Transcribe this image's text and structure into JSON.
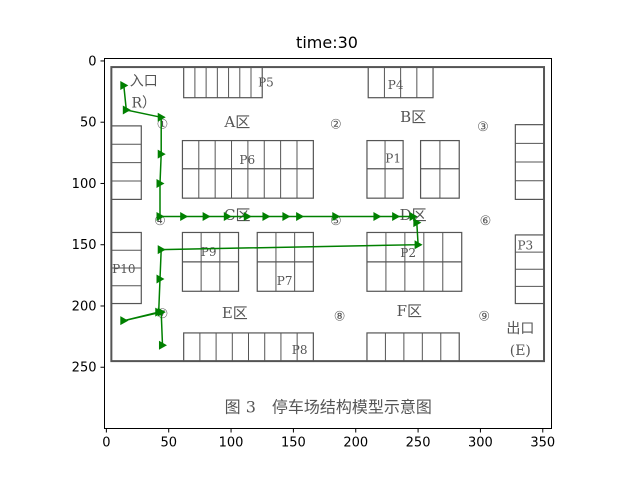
{
  "chart_data": {
    "type": "line",
    "title": "time:30",
    "xlabel": "",
    "ylabel": "",
    "xlim": [
      -1.5,
      357
    ],
    "ylim": [
      300,
      -2
    ],
    "x_ticks": [
      0,
      50,
      100,
      150,
      200,
      250,
      300,
      350
    ],
    "y_ticks": [
      0,
      50,
      100,
      150,
      200,
      250
    ],
    "grid": false,
    "background_image": {
      "caption": "图 3　停车场结构模型示意图",
      "areas": [
        "A区",
        "B区",
        "C区",
        "D区",
        "E区",
        "F区"
      ],
      "entrance": [
        "入口",
        "R）"
      ],
      "exit": [
        "出口",
        "(E)"
      ],
      "nodes": [
        "①",
        "②",
        "③",
        "④",
        "⑤",
        "⑥",
        "⑦",
        "⑧",
        "⑨"
      ],
      "parking_labels": [
        "P5",
        "P4",
        "P6",
        "P1",
        "P3",
        "P9",
        "P2",
        "P7",
        "P10",
        "P8"
      ]
    },
    "series": [
      {
        "color": "#008000",
        "marker": "right-triangle",
        "x": [
          14,
          16,
          44,
          44,
          43,
          43,
          62,
          80,
          97,
          113,
          128,
          144,
          155,
          184,
          217,
          232,
          246,
          249,
          250,
          44,
          43,
          42,
          14,
          44,
          45
        ],
        "y": [
          20,
          40,
          46,
          76,
          100,
          127,
          127,
          127,
          127,
          127,
          127,
          127,
          127,
          127,
          127,
          127,
          127,
          132,
          150,
          154,
          178,
          205,
          212,
          205,
          232
        ]
      }
    ]
  }
}
